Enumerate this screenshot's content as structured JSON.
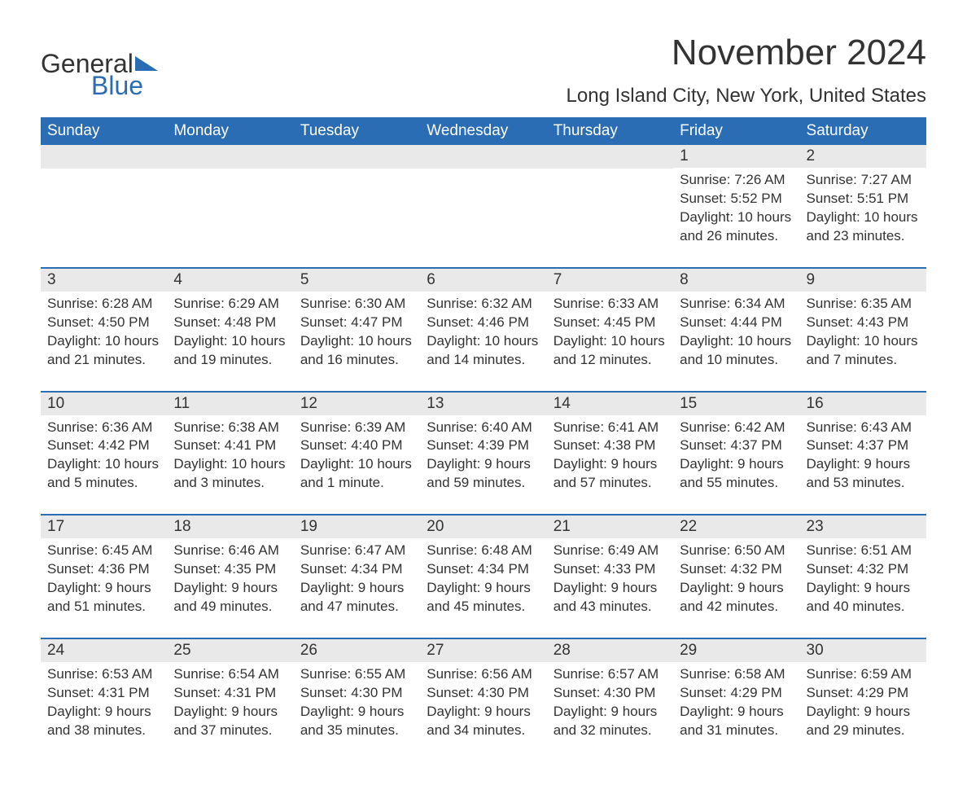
{
  "logo": {
    "general": "General",
    "blue": "Blue"
  },
  "title": "November 2024",
  "location": "Long Island City, New York, United States",
  "colors": {
    "header_bg": "#2a6db5",
    "header_fg": "#ffffff",
    "daynum_bg": "#e9e9e9",
    "rule": "#2a6db5",
    "text": "#333333",
    "background": "#ffffff"
  },
  "day_headers": [
    "Sunday",
    "Monday",
    "Tuesday",
    "Wednesday",
    "Thursday",
    "Friday",
    "Saturday"
  ],
  "labels": {
    "sunrise": "Sunrise:",
    "sunset": "Sunset:",
    "daylight": "Daylight:"
  },
  "weeks": [
    [
      null,
      null,
      null,
      null,
      null,
      {
        "d": "1",
        "sunrise": "7:26 AM",
        "sunset": "5:52 PM",
        "daylight": "10 hours and 26 minutes."
      },
      {
        "d": "2",
        "sunrise": "7:27 AM",
        "sunset": "5:51 PM",
        "daylight": "10 hours and 23 minutes."
      }
    ],
    [
      {
        "d": "3",
        "sunrise": "6:28 AM",
        "sunset": "4:50 PM",
        "daylight": "10 hours and 21 minutes."
      },
      {
        "d": "4",
        "sunrise": "6:29 AM",
        "sunset": "4:48 PM",
        "daylight": "10 hours and 19 minutes."
      },
      {
        "d": "5",
        "sunrise": "6:30 AM",
        "sunset": "4:47 PM",
        "daylight": "10 hours and 16 minutes."
      },
      {
        "d": "6",
        "sunrise": "6:32 AM",
        "sunset": "4:46 PM",
        "daylight": "10 hours and 14 minutes."
      },
      {
        "d": "7",
        "sunrise": "6:33 AM",
        "sunset": "4:45 PM",
        "daylight": "10 hours and 12 minutes."
      },
      {
        "d": "8",
        "sunrise": "6:34 AM",
        "sunset": "4:44 PM",
        "daylight": "10 hours and 10 minutes."
      },
      {
        "d": "9",
        "sunrise": "6:35 AM",
        "sunset": "4:43 PM",
        "daylight": "10 hours and 7 minutes."
      }
    ],
    [
      {
        "d": "10",
        "sunrise": "6:36 AM",
        "sunset": "4:42 PM",
        "daylight": "10 hours and 5 minutes."
      },
      {
        "d": "11",
        "sunrise": "6:38 AM",
        "sunset": "4:41 PM",
        "daylight": "10 hours and 3 minutes."
      },
      {
        "d": "12",
        "sunrise": "6:39 AM",
        "sunset": "4:40 PM",
        "daylight": "10 hours and 1 minute."
      },
      {
        "d": "13",
        "sunrise": "6:40 AM",
        "sunset": "4:39 PM",
        "daylight": "9 hours and 59 minutes."
      },
      {
        "d": "14",
        "sunrise": "6:41 AM",
        "sunset": "4:38 PM",
        "daylight": "9 hours and 57 minutes."
      },
      {
        "d": "15",
        "sunrise": "6:42 AM",
        "sunset": "4:37 PM",
        "daylight": "9 hours and 55 minutes."
      },
      {
        "d": "16",
        "sunrise": "6:43 AM",
        "sunset": "4:37 PM",
        "daylight": "9 hours and 53 minutes."
      }
    ],
    [
      {
        "d": "17",
        "sunrise": "6:45 AM",
        "sunset": "4:36 PM",
        "daylight": "9 hours and 51 minutes."
      },
      {
        "d": "18",
        "sunrise": "6:46 AM",
        "sunset": "4:35 PM",
        "daylight": "9 hours and 49 minutes."
      },
      {
        "d": "19",
        "sunrise": "6:47 AM",
        "sunset": "4:34 PM",
        "daylight": "9 hours and 47 minutes."
      },
      {
        "d": "20",
        "sunrise": "6:48 AM",
        "sunset": "4:34 PM",
        "daylight": "9 hours and 45 minutes."
      },
      {
        "d": "21",
        "sunrise": "6:49 AM",
        "sunset": "4:33 PM",
        "daylight": "9 hours and 43 minutes."
      },
      {
        "d": "22",
        "sunrise": "6:50 AM",
        "sunset": "4:32 PM",
        "daylight": "9 hours and 42 minutes."
      },
      {
        "d": "23",
        "sunrise": "6:51 AM",
        "sunset": "4:32 PM",
        "daylight": "9 hours and 40 minutes."
      }
    ],
    [
      {
        "d": "24",
        "sunrise": "6:53 AM",
        "sunset": "4:31 PM",
        "daylight": "9 hours and 38 minutes."
      },
      {
        "d": "25",
        "sunrise": "6:54 AM",
        "sunset": "4:31 PM",
        "daylight": "9 hours and 37 minutes."
      },
      {
        "d": "26",
        "sunrise": "6:55 AM",
        "sunset": "4:30 PM",
        "daylight": "9 hours and 35 minutes."
      },
      {
        "d": "27",
        "sunrise": "6:56 AM",
        "sunset": "4:30 PM",
        "daylight": "9 hours and 34 minutes."
      },
      {
        "d": "28",
        "sunrise": "6:57 AM",
        "sunset": "4:30 PM",
        "daylight": "9 hours and 32 minutes."
      },
      {
        "d": "29",
        "sunrise": "6:58 AM",
        "sunset": "4:29 PM",
        "daylight": "9 hours and 31 minutes."
      },
      {
        "d": "30",
        "sunrise": "6:59 AM",
        "sunset": "4:29 PM",
        "daylight": "9 hours and 29 minutes."
      }
    ]
  ]
}
